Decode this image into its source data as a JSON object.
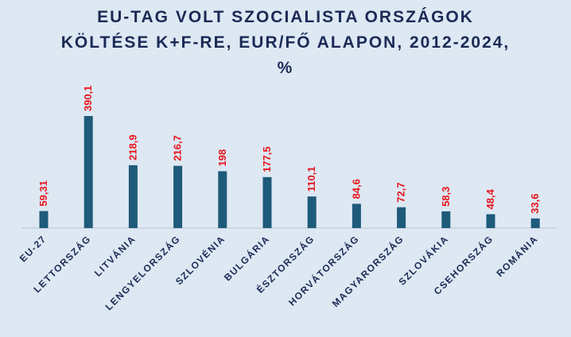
{
  "title": {
    "line1": "EU-TAG VOLT SZOCIALISTA ORSZÁGOK",
    "line2": "KÖLTÉSE K+F-RE, EUR/FŐ ALAPON, 2012-2024,",
    "line3": "%"
  },
  "colors": {
    "background": "#dde8f3",
    "bar": "#1e5a7a",
    "label": "#e8141c",
    "title": "#1b2a55",
    "axis_text": "#1b2a55"
  },
  "chart_data": {
    "type": "bar",
    "title": "EU-TAG VOLT SZOCIALISTA ORSZÁGOK KÖLTÉSE K+F-RE, EUR/FŐ ALAPON, 2012-2024, %",
    "categories": [
      "EU-27",
      "LETTORSZÁG",
      "LITVÁNIA",
      "LENGYELORSZÁG",
      "SZLOVÉNIA",
      "BULGÁRIA",
      "ÉSZTORSZÁG",
      "HORVÁTORSZÁG",
      "MAGYARORSZÁG",
      "SZLOVÁKIA",
      "CSEHORSZÁG",
      "ROMÁNIA"
    ],
    "values": [
      59.31,
      390.1,
      218.9,
      216.7,
      198,
      177.5,
      110.1,
      84.6,
      72.7,
      58.3,
      48.4,
      33.6
    ],
    "value_labels": [
      "59,31",
      "390,1",
      "218,9",
      "216,7",
      "198",
      "177,5",
      "110,1",
      "84,6",
      "72,7",
      "58,3",
      "48,4",
      "33,6"
    ],
    "xlabel": "",
    "ylabel": "",
    "ylim": [
      0,
      390.1
    ],
    "grid": false,
    "legend": "none"
  }
}
